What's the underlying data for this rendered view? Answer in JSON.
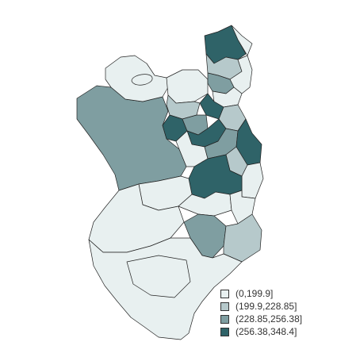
{
  "map": {
    "classes": [
      {
        "label": "(0,199.9]",
        "color": "#e8f0f0"
      },
      {
        "label": "(199.9,228.85]",
        "color": "#b6c9cb"
      },
      {
        "label": "(228.85,256.38]",
        "color": "#7f9ea1"
      },
      {
        "label": "(256.38,348.4]",
        "color": "#2f6368"
      }
    ]
  }
}
